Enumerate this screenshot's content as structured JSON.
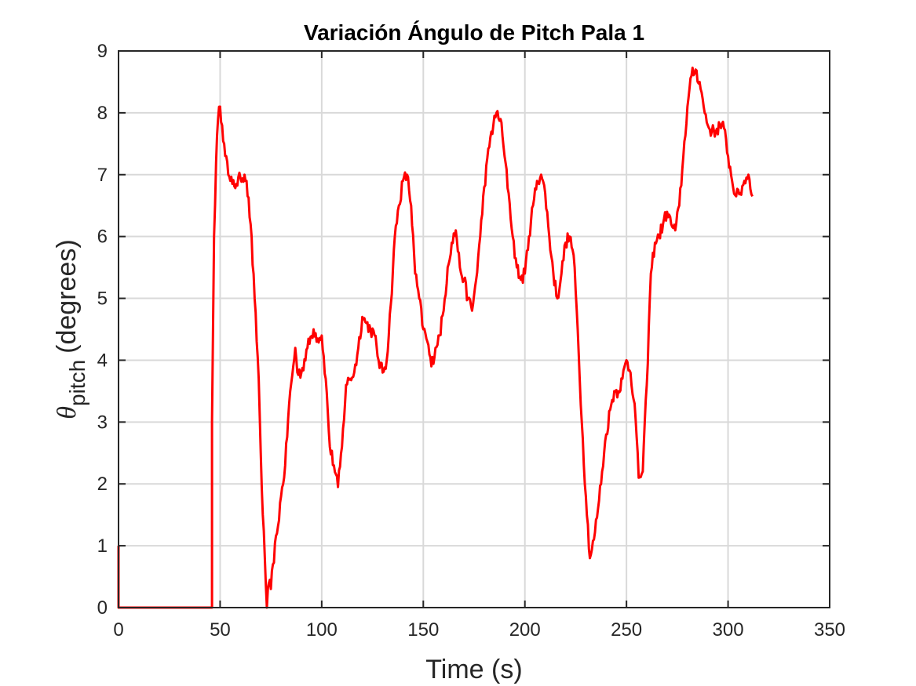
{
  "chart_data": {
    "type": "line",
    "title": "Variación Ángulo de Pitch Pala 1",
    "xlabel": "Time (s)",
    "ylabel": {
      "symbol": "θ",
      "subscript": "pitch",
      "unit": "(degrees)"
    },
    "xlim": [
      0,
      350
    ],
    "ylim": [
      0,
      9
    ],
    "xticks": [
      "0",
      "50",
      "100",
      "150",
      "200",
      "250",
      "300",
      "350"
    ],
    "yticks": [
      "0",
      "1",
      "2",
      "3",
      "4",
      "5",
      "6",
      "7",
      "8",
      "9"
    ],
    "grid": true,
    "colors": {
      "line": "#ff0000",
      "grid": "#d9d9d9",
      "axis": "#262626"
    },
    "series": [
      {
        "name": "Pitch Pala 1",
        "x": [
          0,
          0,
          0,
          46,
          46,
          47,
          48,
          49,
          50,
          51,
          52,
          53,
          54,
          55,
          56,
          58,
          60,
          62,
          63,
          65,
          67,
          69,
          70,
          71,
          72,
          73,
          74,
          75,
          76,
          78,
          80,
          82,
          84,
          86,
          87,
          88,
          90,
          93,
          96,
          98,
          100,
          102,
          104,
          106,
          108,
          110,
          112,
          114,
          116,
          118,
          120,
          122,
          124,
          126,
          128,
          130,
          132,
          134,
          136,
          138,
          140,
          142,
          144,
          146,
          148,
          150,
          152,
          154,
          156,
          158,
          160,
          162,
          164,
          166,
          168,
          170,
          172,
          174,
          176,
          178,
          180,
          183,
          186,
          188,
          190,
          192,
          194,
          196,
          198,
          200,
          202,
          204,
          206,
          208,
          210,
          212,
          214,
          216,
          218,
          220,
          222,
          224,
          226,
          228,
          230,
          232,
          234,
          236,
          238,
          240,
          242,
          244,
          246,
          248,
          250,
          252,
          254,
          256,
          258,
          260,
          262,
          264,
          266,
          268,
          270,
          272,
          274,
          276,
          278,
          280,
          282,
          284,
          286,
          288,
          290,
          292,
          294,
          296,
          298,
          300,
          302,
          304,
          306,
          308,
          310,
          312
        ],
        "values": [
          1.0,
          0.0,
          0.0,
          0.0,
          3.0,
          6.0,
          7.2,
          7.9,
          8.1,
          7.8,
          7.5,
          7.3,
          7.0,
          6.9,
          6.85,
          6.85,
          6.95,
          7.0,
          6.9,
          6.2,
          5.0,
          3.7,
          2.5,
          1.5,
          0.8,
          0.0,
          0.4,
          0.3,
          0.7,
          1.2,
          1.8,
          2.3,
          3.3,
          3.9,
          4.2,
          3.8,
          3.8,
          4.2,
          4.5,
          4.35,
          4.4,
          3.7,
          2.6,
          2.3,
          1.95,
          2.6,
          3.6,
          3.7,
          3.8,
          4.2,
          4.7,
          4.6,
          4.5,
          4.4,
          4.0,
          3.8,
          4.0,
          4.9,
          6.0,
          6.5,
          6.9,
          7.0,
          6.5,
          5.4,
          5.0,
          4.5,
          4.3,
          3.9,
          4.2,
          4.4,
          4.8,
          5.5,
          5.9,
          6.1,
          5.5,
          5.3,
          5.0,
          4.8,
          5.3,
          6.0,
          6.8,
          7.6,
          8.0,
          7.9,
          7.3,
          6.7,
          6.0,
          5.5,
          5.3,
          5.4,
          6.0,
          6.5,
          6.9,
          7.0,
          6.7,
          6.0,
          5.4,
          5.0,
          5.4,
          5.9,
          6.0,
          5.7,
          4.5,
          3.0,
          1.8,
          0.8,
          1.1,
          1.6,
          2.2,
          2.8,
          3.2,
          3.5,
          3.5,
          3.7,
          4.0,
          3.8,
          3.3,
          2.1,
          2.2,
          3.6,
          5.4,
          5.9,
          6.0,
          6.2,
          6.4,
          6.2,
          6.1,
          6.5,
          7.3,
          8.1,
          8.6,
          8.7,
          8.5,
          8.1,
          7.8,
          7.7,
          7.7,
          7.8,
          7.75,
          7.3,
          6.9,
          6.65,
          6.7,
          6.9,
          7.0,
          6.65
        ]
      }
    ]
  }
}
